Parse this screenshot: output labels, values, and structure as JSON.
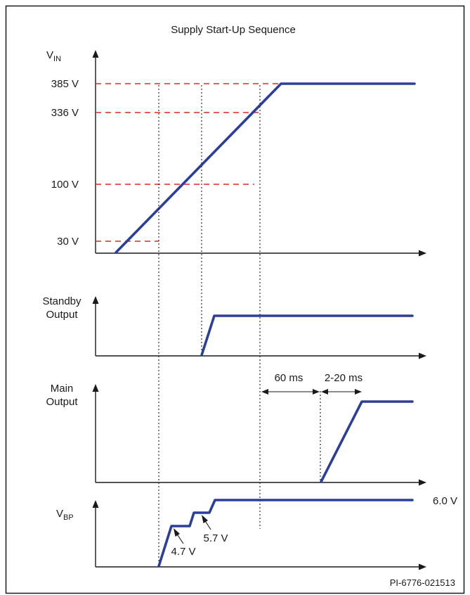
{
  "title": "Supply Start-Up Sequence",
  "figure_id": "PI-6776-021513",
  "panels": {
    "vin": {
      "label_main": "V",
      "label_sub": "IN",
      "levels": [
        "385 V",
        "336 V",
        "100 V",
        "30 V"
      ]
    },
    "standby": {
      "label_line1": "Standby",
      "label_line2": "Output"
    },
    "main": {
      "label_line1": "Main",
      "label_line2": "Output"
    },
    "vbp": {
      "label_main": "V",
      "label_sub": "BP",
      "final_level": "6.0 V",
      "step1": "4.7 V",
      "step2": "5.7 V"
    }
  },
  "timing": {
    "delay1": "60 ms",
    "delay2": "2-20 ms"
  },
  "colors": {
    "trace": "#2b3f9a",
    "reference": "#e0291b",
    "border": "#1a1a1a"
  }
}
